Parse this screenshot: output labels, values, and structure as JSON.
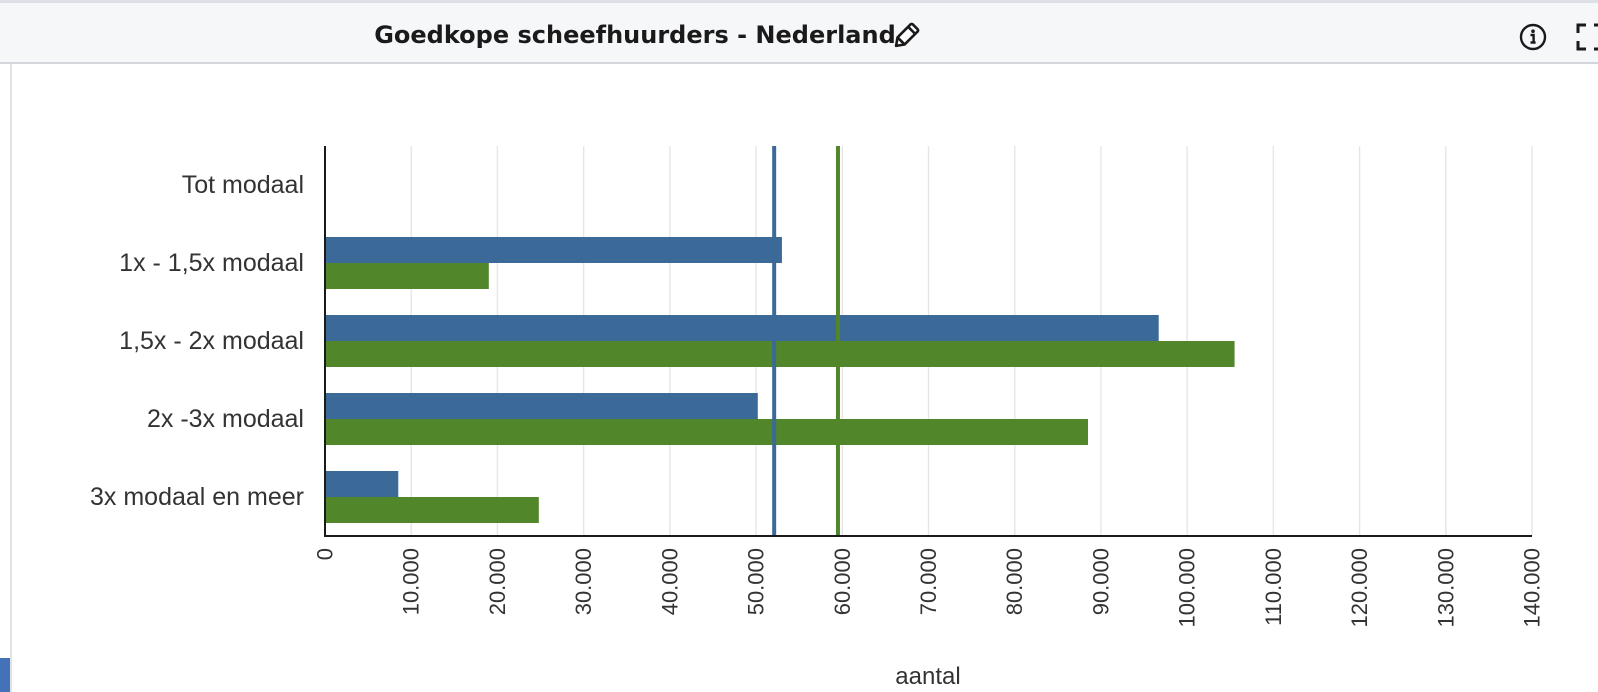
{
  "header": {
    "title": "Goedkope scheefhuurders - Nederland",
    "icons": [
      "edit-icon",
      "info-icon",
      "expand-icon"
    ]
  },
  "chart_data": {
    "type": "bar",
    "orientation": "horizontal",
    "categories": [
      "Tot modaal",
      "1x - 1,5x modaal",
      "1,5x - 2x modaal",
      "2x -3x modaal",
      "3x modaal en meer"
    ],
    "series": [
      {
        "color": "#3b6998",
        "values": [
          0,
          53000,
          96700,
          50200,
          8500
        ]
      },
      {
        "color": "#52862a",
        "values": [
          0,
          19000,
          105500,
          88500,
          24800
        ]
      }
    ],
    "reference_lines": [
      {
        "value": 52100,
        "color": "#3b6998"
      },
      {
        "value": 59500,
        "color": "#52862a"
      }
    ],
    "xlabel": "aantal",
    "ylabel": "",
    "xlim": [
      0,
      140000
    ],
    "x_ticks": [
      "0",
      "10.000",
      "20.000",
      "30.000",
      "40.000",
      "50.000",
      "60.000",
      "70.000",
      "80.000",
      "90.000",
      "100.000",
      "110.000",
      "120.000",
      "130.000",
      "140.000"
    ],
    "grid": "vertical",
    "grid_color": "#e6e6e6"
  }
}
